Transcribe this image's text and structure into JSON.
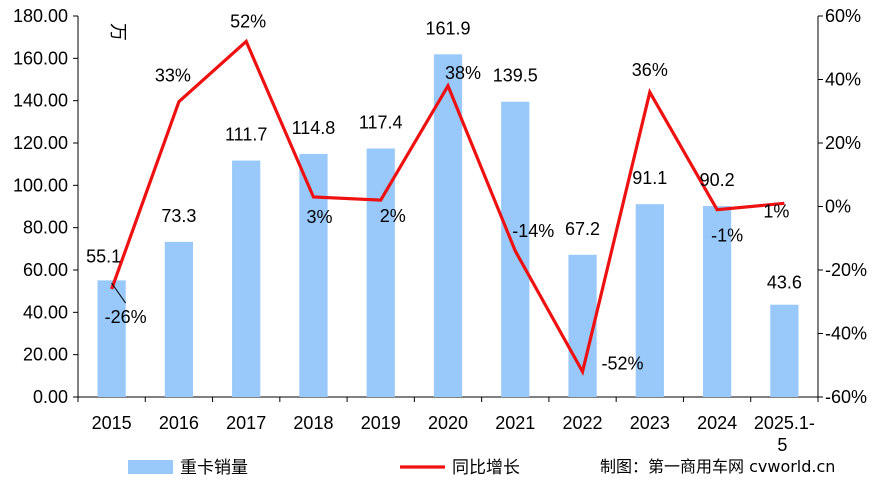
{
  "chart_data": {
    "type": "bar+line",
    "categories": [
      "2015",
      "2016",
      "2017",
      "2018",
      "2019",
      "2020",
      "2021",
      "2022",
      "2023",
      "2024",
      "2025.1-5"
    ],
    "series": [
      {
        "name": "重卡销量",
        "type": "bar",
        "axis": "left",
        "color": "#99c9fa",
        "values": [
          55.1,
          73.3,
          111.7,
          114.8,
          117.4,
          161.9,
          139.5,
          67.2,
          91.1,
          90.2,
          43.6
        ],
        "labels": [
          "55.1",
          "73.3",
          "111.7",
          "114.8",
          "117.4",
          "161.9",
          "139.5",
          "67.2",
          "91.1",
          "90.2",
          "43.6"
        ]
      },
      {
        "name": "同比增长",
        "type": "line",
        "axis": "right",
        "color": "#ee1111",
        "values": [
          -26,
          33,
          52,
          3,
          2,
          38,
          -14,
          -52,
          36,
          -1,
          1
        ],
        "labels": [
          "-26%",
          "33%",
          "52%",
          "3%",
          "2%",
          "38%",
          "-14%",
          "-52%",
          "36%",
          "-1%",
          "1%"
        ]
      }
    ],
    "y_left": {
      "range": [
        0,
        180
      ],
      "ticks": [
        "0.00",
        "20.00",
        "40.00",
        "60.00",
        "80.00",
        "100.00",
        "120.00",
        "140.00",
        "160.00",
        "180.00"
      ],
      "unit_label": "万"
    },
    "y_right": {
      "range": [
        -60,
        60
      ],
      "ticks": [
        "-60%",
        "-40%",
        "-20%",
        "0%",
        "20%",
        "40%",
        "60%"
      ]
    },
    "legend_position": "bottom-left",
    "grid": false
  },
  "credit": "制图：第一商用车网 cvworld.cn"
}
